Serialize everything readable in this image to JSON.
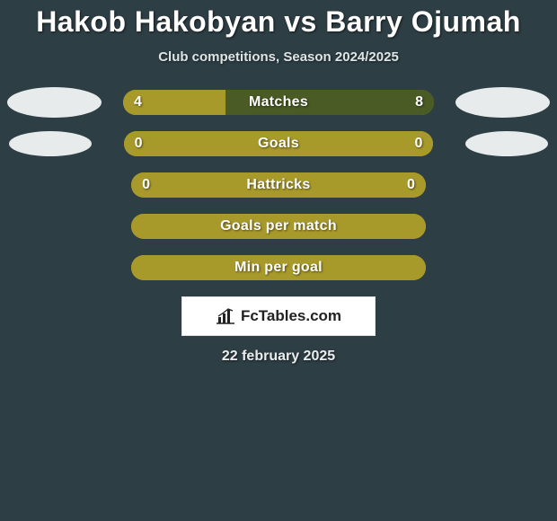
{
  "title": "Hakob Hakobyan vs Barry Ojumah",
  "subtitle": "Club competitions, Season 2024/2025",
  "date": "22 february 2025",
  "colors": {
    "background": "#2d3e44",
    "bar_olive": "#a89a2a",
    "bar_dark": "#4a5b25",
    "oval": "#e7ebec",
    "text": "#ffffff"
  },
  "stats": [
    {
      "label": "Matches",
      "left_value": "4",
      "right_value": "8",
      "left_fill_pct": 33,
      "right_fill_pct": 67,
      "left_color": "#a89a2a",
      "right_color": "#4a5b25",
      "show_left_oval": "big",
      "show_right_oval": "big"
    },
    {
      "label": "Goals",
      "left_value": "0",
      "right_value": "0",
      "left_fill_pct": 100,
      "right_fill_pct": 0,
      "left_color": "#a89a2a",
      "right_color": "#4a5b25",
      "show_left_oval": "small",
      "show_right_oval": "small"
    },
    {
      "label": "Hattricks",
      "left_value": "0",
      "right_value": "0",
      "left_fill_pct": 100,
      "right_fill_pct": 0,
      "left_color": "#a89a2a",
      "right_color": "#4a5b25",
      "show_left_oval": "none",
      "show_right_oval": "none"
    },
    {
      "label": "Goals per match",
      "left_value": "",
      "right_value": "",
      "left_fill_pct": 100,
      "right_fill_pct": 0,
      "left_color": "#a89a2a",
      "right_color": "#4a5b25",
      "show_left_oval": "none",
      "show_right_oval": "none"
    },
    {
      "label": "Min per goal",
      "left_value": "",
      "right_value": "",
      "left_fill_pct": 100,
      "right_fill_pct": 0,
      "left_color": "#a89a2a",
      "right_color": "#4a5b25",
      "show_left_oval": "none",
      "show_right_oval": "none"
    }
  ],
  "logo": {
    "text": "FcTables.com"
  }
}
